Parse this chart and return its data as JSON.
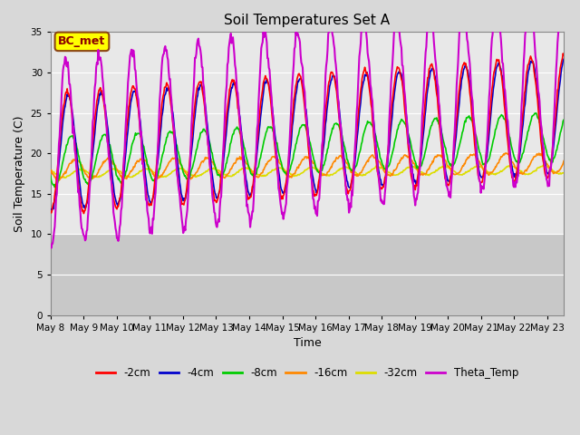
{
  "title": "Soil Temperatures Set A",
  "xlabel": "Time",
  "ylabel": "Soil Temperature (C)",
  "ylim": [
    0,
    35
  ],
  "num_days": 15.5,
  "annotation_text": "BC_met",
  "annotation_box_color": "#ffff00",
  "annotation_text_color": "#8B0000",
  "annotation_edge_color": "#8B4513",
  "series_colors": {
    "-2cm": "#ff0000",
    "-4cm": "#0000cc",
    "-8cm": "#00cc00",
    "-16cm": "#ff8800",
    "-32cm": "#dddd00",
    "Theta_Temp": "#cc00cc"
  },
  "yticks": [
    0,
    5,
    10,
    15,
    20,
    25,
    30,
    35
  ],
  "xtick_labels": [
    "May 8",
    "May 9",
    "May 10",
    "May 11",
    "May 12",
    "May 13",
    "May 14",
    "May 15",
    "May 16",
    "May 17",
    "May 18",
    "May 19",
    "May 20",
    "May 21",
    "May 22",
    "May 23"
  ],
  "fig_bg_color": "#d8d8d8",
  "plot_bg_light": "#e8e8e8",
  "plot_bg_dark": "#c8c8c8",
  "grid_color": "#ffffff",
  "legend_items": [
    {
      "label": "-2cm",
      "color": "#ff0000"
    },
    {
      "label": "-4cm",
      "color": "#0000cc"
    },
    {
      "label": "-8cm",
      "color": "#00cc00"
    },
    {
      "label": "-16cm",
      "color": "#ff8800"
    },
    {
      "label": "-32cm",
      "color": "#dddd00"
    },
    {
      "label": "Theta_Temp",
      "color": "#cc00cc"
    }
  ],
  "lw": 1.2
}
